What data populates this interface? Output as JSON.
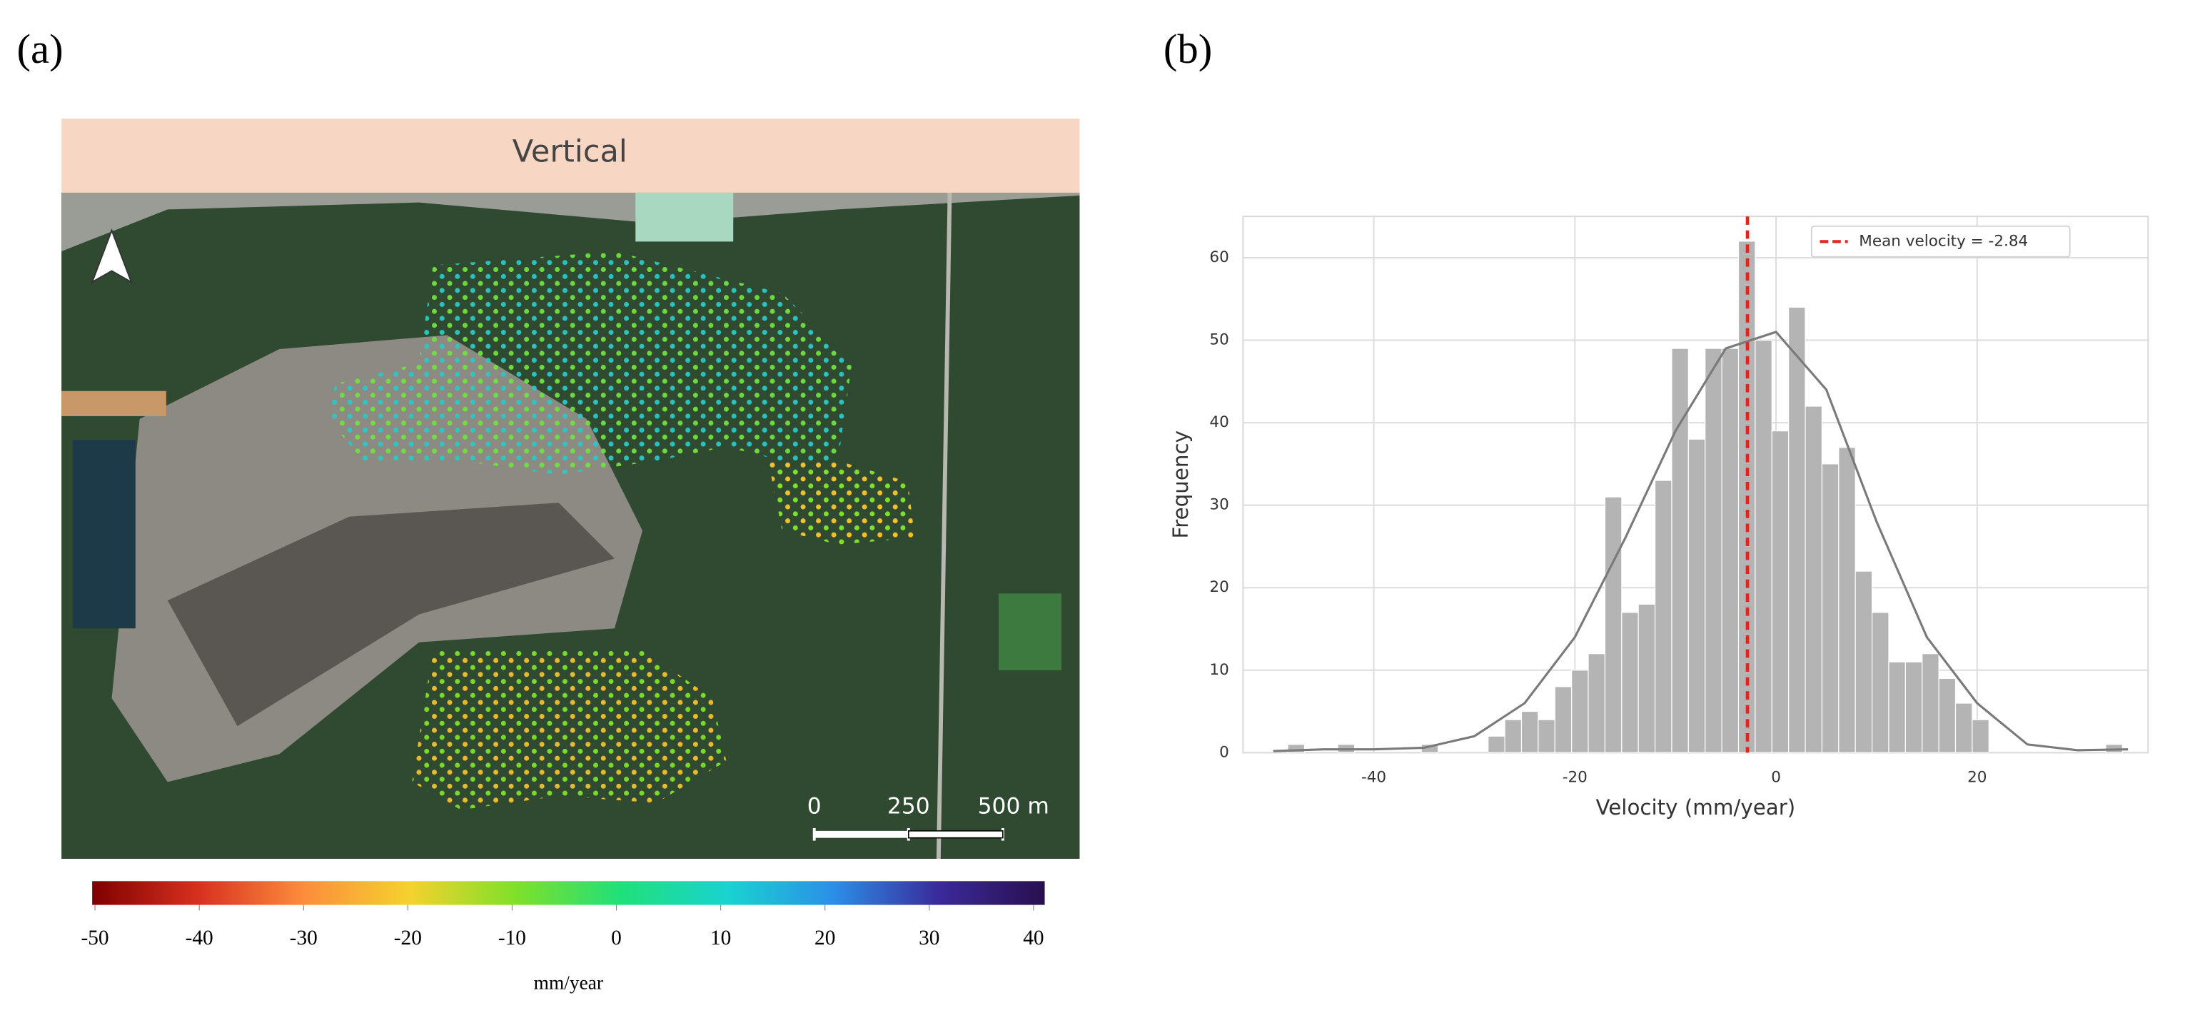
{
  "chart_data": [
    {
      "type": "map",
      "panel_label": "(a)",
      "title": "Vertical",
      "scalebar": {
        "lim": [
          0,
          500
        ],
        "ticks": [
          0,
          250,
          {
            "value": 500,
            "label": "500 m"
          }
        ]
      },
      "colorbar": {
        "lim": [
          -50,
          40
        ],
        "ticks": [
          -50,
          -40,
          -30,
          -20,
          -10,
          0,
          10,
          20,
          30,
          40
        ],
        "label": "mm/year",
        "colors": [
          "#7f0000",
          "#d7301f",
          "#fc8d3c",
          "#f5d22e",
          "#7fe02a",
          "#1fe07a",
          "#19d3d0",
          "#2c8fe8",
          "#3a2a9a",
          "#2a0f4f"
        ]
      }
    },
    {
      "type": "histogram",
      "panel_label": "(b)",
      "xlabel": "Velocity (mm/year)",
      "ylabel": "Frequency",
      "bins": [
        -48.55,
        -46.89,
        -45.23,
        -43.57,
        -41.91,
        -40.25,
        -38.59,
        -36.93,
        -35.27,
        -33.61,
        -31.95,
        -30.29,
        -28.63,
        -26.97,
        -25.31,
        -23.65,
        -21.99,
        -20.33,
        -18.67,
        -17.01,
        -15.35,
        -13.69,
        -12.03,
        -10.37,
        -8.71,
        -7.05,
        -5.39,
        -3.73,
        -2.07,
        -0.41,
        1.25,
        2.91,
        4.57,
        6.23,
        7.89,
        9.55,
        11.21,
        12.87,
        14.53,
        16.19,
        17.85,
        19.51,
        21.17,
        22.83,
        24.49,
        26.15,
        27.81,
        29.47,
        31.13,
        32.79,
        34.45
      ],
      "values": [
        1,
        0,
        0,
        1,
        0,
        0,
        0,
        0,
        1,
        0,
        0,
        0,
        2,
        4,
        5,
        4,
        8,
        10,
        12,
        31,
        17,
        18,
        33,
        49,
        38,
        49,
        49,
        62,
        50,
        39,
        54,
        42,
        35,
        37,
        22,
        17,
        11,
        11,
        12,
        9,
        6,
        4,
        0,
        0,
        0,
        0,
        0,
        0,
        0,
        1
      ],
      "color": "#b4b4b4",
      "kde": {
        "color": "#7a7a7a",
        "x": [
          -50,
          -45,
          -40,
          -35,
          -30,
          -25,
          -20,
          -15,
          -10,
          -5,
          0,
          5,
          10,
          15,
          20,
          25,
          30,
          35
        ],
        "y": [
          0.2,
          0.4,
          0.4,
          0.6,
          2,
          6,
          14,
          26,
          39,
          49,
          51,
          44,
          28,
          14,
          6,
          1,
          0.3,
          0.4
        ]
      },
      "mean_line": {
        "value": -2.84,
        "color": "#e8231c",
        "label": "Mean velocity = -2.84"
      },
      "legend": "upper right",
      "xlim": [
        -53,
        37
      ],
      "ylim": [
        0,
        65
      ],
      "xticks": [
        -40,
        -20,
        0,
        20
      ],
      "yticks": [
        0,
        10,
        20,
        30,
        40,
        50,
        60
      ],
      "grid": true
    }
  ]
}
